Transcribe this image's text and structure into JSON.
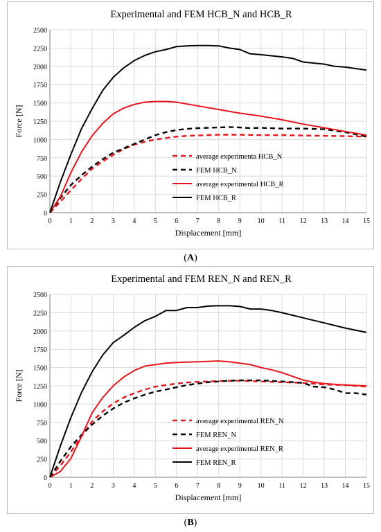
{
  "captions": {
    "a": "A",
    "b": "B"
  },
  "chart_data": [
    {
      "type": "line",
      "title": "Experimental and FEM HCB_N and HCB_R",
      "xlabel": "Displacement [mm]",
      "ylabel": "Force [N]",
      "xlim": [
        0,
        15
      ],
      "ylim": [
        0,
        2500
      ],
      "xticks": [
        "0",
        "1",
        "2",
        "3",
        "4",
        "5",
        "6",
        "7",
        "8",
        "9",
        "10",
        "11",
        "12",
        "13",
        "14",
        "15"
      ],
      "yticks": [
        "0",
        "250",
        "500",
        "750",
        "1000",
        "1250",
        "1500",
        "1750",
        "2000",
        "2250",
        "2500"
      ],
      "grid": true,
      "legend_position": "bottom-right",
      "series": [
        {
          "name": "average experimenta HCB_N",
          "color": "#e8141b",
          "dashed": true,
          "x": [
            0,
            0.5,
            1,
            1.5,
            2,
            2.5,
            3,
            3.5,
            4,
            4.5,
            5,
            5.5,
            6,
            6.5,
            7,
            8,
            9,
            10,
            11,
            12,
            13,
            14,
            15
          ],
          "y": [
            0,
            150,
            310,
            460,
            600,
            700,
            790,
            870,
            930,
            970,
            1000,
            1020,
            1040,
            1050,
            1055,
            1065,
            1065,
            1060,
            1060,
            1055,
            1050,
            1045,
            1040
          ]
        },
        {
          "name": "FEM HCB_N",
          "color": "#000000",
          "dashed": true,
          "x": [
            0,
            0.5,
            1,
            1.5,
            2,
            2.5,
            3,
            3.5,
            4,
            4.5,
            5,
            5.5,
            6,
            6.5,
            7,
            7.5,
            8,
            8.5,
            9,
            9.5,
            10,
            11,
            12,
            13,
            14,
            15
          ],
          "y": [
            0,
            200,
            380,
            510,
            630,
            730,
            820,
            880,
            940,
            1000,
            1060,
            1100,
            1130,
            1145,
            1155,
            1160,
            1165,
            1170,
            1165,
            1155,
            1160,
            1150,
            1150,
            1140,
            1100,
            1040
          ]
        },
        {
          "name": "average experimental HCB_R",
          "color": "#e8141b",
          "dashed": false,
          "x": [
            0,
            0.5,
            1,
            1.5,
            2,
            2.5,
            3,
            3.5,
            4,
            4.5,
            5,
            5.5,
            6,
            7,
            8,
            9,
            10,
            11,
            12,
            13,
            14,
            15
          ],
          "y": [
            0,
            220,
            550,
            830,
            1050,
            1220,
            1350,
            1430,
            1480,
            1510,
            1520,
            1520,
            1510,
            1460,
            1410,
            1360,
            1320,
            1270,
            1210,
            1160,
            1110,
            1060
          ]
        },
        {
          "name": "FEM HCB_R",
          "color": "#000000",
          "dashed": false,
          "x": [
            0,
            0.5,
            1,
            1.5,
            2,
            2.5,
            3,
            3.5,
            4,
            4.5,
            5,
            5.5,
            6,
            6.5,
            7,
            7.5,
            8,
            8.5,
            9,
            9.5,
            10,
            11,
            11.5,
            12,
            13,
            13.5,
            14,
            15
          ],
          "y": [
            0,
            420,
            800,
            1150,
            1420,
            1670,
            1850,
            1980,
            2080,
            2150,
            2200,
            2230,
            2270,
            2280,
            2285,
            2285,
            2280,
            2250,
            2230,
            2170,
            2160,
            2130,
            2110,
            2060,
            2030,
            2000,
            1990,
            1950
          ]
        }
      ]
    },
    {
      "type": "line",
      "title": "Experimental and FEM REN_N and REN_R",
      "xlabel": "Displacement [mm]",
      "ylabel": "Force [N]",
      "xlim": [
        0,
        15
      ],
      "ylim": [
        0,
        2500
      ],
      "xticks": [
        "0",
        "1",
        "2",
        "3",
        "4",
        "5",
        "6",
        "7",
        "8",
        "9",
        "10",
        "11",
        "12",
        "13",
        "14",
        "15"
      ],
      "yticks": [
        "0",
        "250",
        "500",
        "750",
        "1000",
        "1250",
        "1500",
        "1750",
        "2000",
        "2250",
        "2500"
      ],
      "grid": true,
      "legend_position": "bottom-right",
      "series": [
        {
          "name": "average experimental REN_N",
          "color": "#e8141b",
          "dashed": true,
          "x": [
            0,
            0.5,
            1,
            1.5,
            2,
            2.5,
            3,
            3.5,
            4,
            4.5,
            5,
            5.5,
            6,
            6.5,
            7,
            8,
            9,
            10,
            11,
            12,
            13,
            14,
            15
          ],
          "y": [
            0,
            160,
            350,
            560,
            760,
            900,
            1010,
            1090,
            1150,
            1200,
            1240,
            1260,
            1280,
            1295,
            1305,
            1315,
            1320,
            1310,
            1300,
            1290,
            1270,
            1260,
            1240
          ]
        },
        {
          "name": "FEM REN_N",
          "color": "#000000",
          "dashed": true,
          "x": [
            0,
            0.5,
            1,
            1.5,
            2,
            2.5,
            3,
            3.5,
            4,
            4.5,
            5,
            5.5,
            6,
            6.5,
            7,
            7.5,
            8,
            8.5,
            9,
            9.5,
            10,
            11,
            11.5,
            12,
            12.5,
            13,
            13.5,
            14,
            14.5,
            15
          ],
          "y": [
            0,
            220,
            420,
            580,
            720,
            840,
            940,
            1020,
            1080,
            1130,
            1170,
            1200,
            1230,
            1260,
            1280,
            1300,
            1310,
            1320,
            1325,
            1325,
            1325,
            1310,
            1300,
            1290,
            1240,
            1230,
            1200,
            1150,
            1150,
            1130
          ]
        },
        {
          "name": "average experimental REN_R",
          "color": "#e8141b",
          "dashed": false,
          "x": [
            0,
            0.5,
            1,
            1.5,
            2,
            2.5,
            3,
            3.5,
            4,
            4.5,
            5,
            5.5,
            6,
            7,
            8,
            8.5,
            9,
            9.5,
            10,
            10.5,
            11,
            11.5,
            12,
            12.5,
            13,
            14,
            15
          ],
          "y": [
            0,
            80,
            260,
            560,
            880,
            1090,
            1250,
            1370,
            1460,
            1520,
            1540,
            1560,
            1570,
            1580,
            1590,
            1580,
            1560,
            1540,
            1500,
            1470,
            1430,
            1380,
            1330,
            1300,
            1280,
            1260,
            1250
          ]
        },
        {
          "name": "FEM REN_R",
          "color": "#000000",
          "dashed": false,
          "x": [
            0,
            0.5,
            1,
            1.5,
            2,
            2.5,
            3,
            3.5,
            4,
            4.5,
            5,
            5.5,
            6,
            6.5,
            7,
            7.5,
            8,
            8.5,
            9,
            9.5,
            10,
            10.5,
            11,
            12,
            13,
            14,
            15
          ],
          "y": [
            0,
            430,
            820,
            1160,
            1440,
            1670,
            1840,
            1940,
            2050,
            2140,
            2200,
            2280,
            2280,
            2320,
            2320,
            2340,
            2345,
            2345,
            2335,
            2300,
            2300,
            2280,
            2250,
            2180,
            2110,
            2040,
            1980
          ]
        }
      ]
    }
  ]
}
